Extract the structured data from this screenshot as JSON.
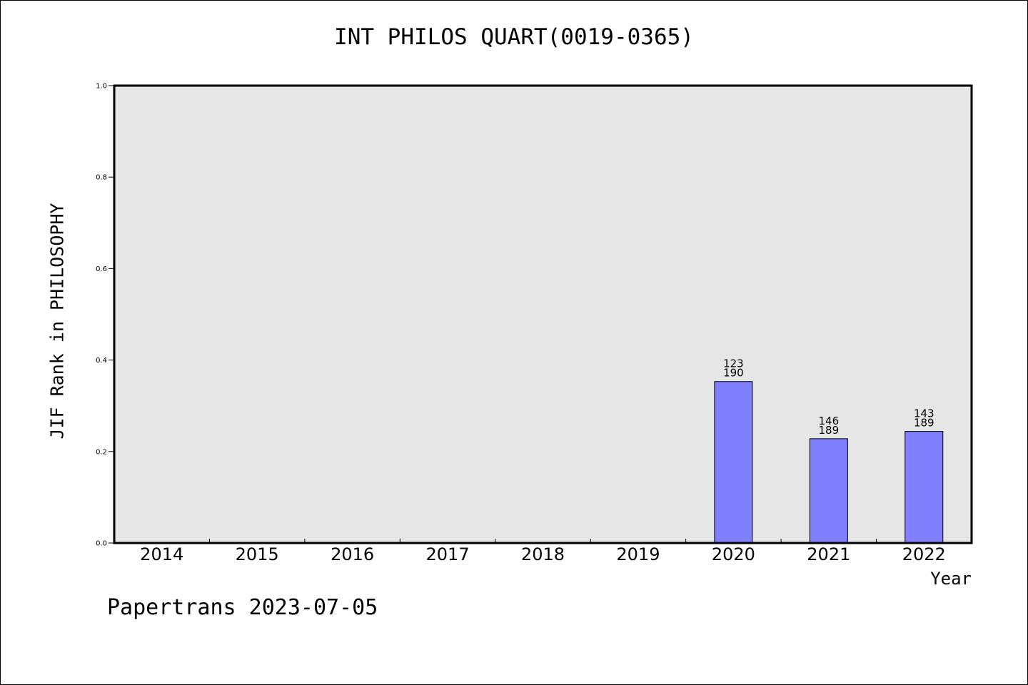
{
  "chart_data": {
    "type": "bar",
    "title": "INT PHILOS QUART(0019-0365)",
    "xlabel": "Year",
    "ylabel": "JIF Rank in PHILOSOPHY",
    "categories": [
      "2014",
      "2015",
      "2016",
      "2017",
      "2018",
      "2019",
      "2020",
      "2021",
      "2022"
    ],
    "values": [
      null,
      null,
      null,
      null,
      null,
      null,
      0.353,
      0.228,
      0.244
    ],
    "bar_labels": [
      null,
      null,
      null,
      null,
      null,
      null,
      {
        "rank": "123",
        "total": "190"
      },
      {
        "rank": "146",
        "total": "189"
      },
      {
        "rank": "143",
        "total": "189"
      }
    ],
    "ylim": [
      0,
      1.0
    ],
    "yticks": [
      "0.0",
      "0.2",
      "0.4",
      "0.6",
      "0.8",
      "1.0"
    ],
    "grid": false,
    "colors": {
      "bar": "#8080ff",
      "plot_bg": "#e6e6e6"
    }
  },
  "footer": "Papertrans 2023-07-05"
}
